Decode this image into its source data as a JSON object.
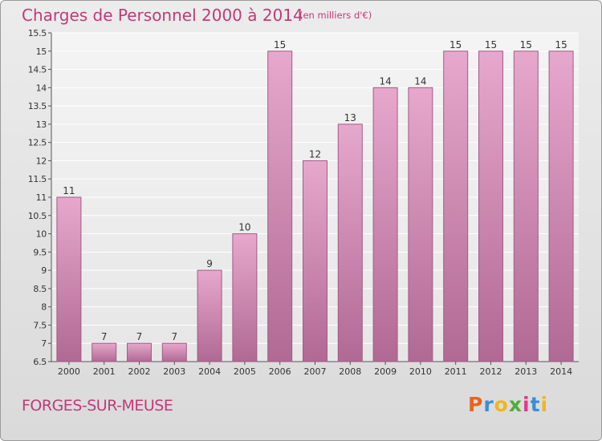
{
  "header": {
    "title": "Charges de Personnel 2000 à 2014",
    "subtitle": "(en milliers d'€)"
  },
  "footer": {
    "commune": "FORGES-SUR-MEUSE",
    "logo": "Proxiti",
    "logo_colors": [
      "#e8641e",
      "#3a8fd6",
      "#f0b61e",
      "#4caf3a",
      "#e03a8a",
      "#3a8fd6",
      "#f0b61e"
    ]
  },
  "chart_data": {
    "type": "bar",
    "title": "Charges de Personnel 2000 à 2014",
    "subtitle": "(en milliers d'€)",
    "categories": [
      "2000",
      "2001",
      "2002",
      "2003",
      "2004",
      "2005",
      "2006",
      "2007",
      "2008",
      "2009",
      "2010",
      "2011",
      "2012",
      "2013",
      "2014"
    ],
    "values": [
      11,
      7,
      7,
      7,
      9,
      10,
      15,
      12,
      13,
      14,
      14,
      15,
      15,
      15,
      15
    ],
    "data_labels": [
      "11",
      "7",
      "7",
      "7",
      "9",
      "10",
      "15",
      "12",
      "13",
      "14",
      "14",
      "15",
      "15",
      "15",
      "15"
    ],
    "ylim": [
      6.5,
      15.5
    ],
    "yticks": [
      6.5,
      7,
      7.5,
      8,
      8.5,
      9,
      9.5,
      10,
      10.5,
      11,
      11.5,
      12,
      12.5,
      13,
      13.5,
      14,
      14.5,
      15,
      15.5
    ],
    "ytick_labels": [
      "6.5",
      "7",
      "7.5",
      "8",
      "8.5",
      "9",
      "9.5",
      "10",
      "10.5",
      "11",
      "11.5",
      "12",
      "12.5",
      "13",
      "13.5",
      "14",
      "14.5",
      "15",
      "15.5"
    ],
    "grid": true,
    "colors": {
      "bar": "#d98fba",
      "bar_dark": "#b56a95",
      "grid": "#ffffff",
      "text": "#333333"
    }
  }
}
